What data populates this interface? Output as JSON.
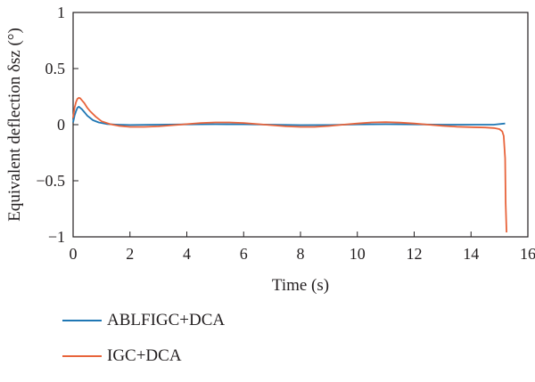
{
  "chart_data": {
    "type": "line",
    "xlabel": "Time (s)",
    "ylabel": "Equivalent deflection δsz (°)",
    "xlim": [
      0,
      16
    ],
    "ylim": [
      -1,
      1
    ],
    "xticks": [
      0,
      2,
      4,
      6,
      8,
      10,
      12,
      14,
      16
    ],
    "xtick_labels": [
      "0",
      "2",
      "4",
      "6",
      "8",
      "10",
      "12",
      "14",
      "16"
    ],
    "yticks": [
      -1,
      -0.5,
      0,
      0.5,
      1
    ],
    "ytick_labels": [
      "−1",
      "−0.5",
      "0",
      "0.5",
      "1"
    ],
    "grid": false,
    "legend_position": "bottom-left",
    "series": [
      {
        "name": "ABLFIGC+DCA",
        "color": "#1f77b4",
        "x": [
          0,
          0.05,
          0.1,
          0.15,
          0.2,
          0.3,
          0.4,
          0.5,
          0.7,
          0.9,
          1.2,
          1.6,
          2,
          3,
          4,
          5,
          6,
          7,
          8,
          9,
          10,
          11,
          12,
          13,
          14,
          14.8,
          15.2
        ],
        "y": [
          0.02,
          0.08,
          0.12,
          0.15,
          0.16,
          0.14,
          0.11,
          0.08,
          0.04,
          0.02,
          0.005,
          0,
          -0.003,
          0,
          0.002,
          0.004,
          0.003,
          0,
          -0.004,
          -0.003,
          0.002,
          0.004,
          0.002,
          0,
          0,
          0,
          0.01
        ]
      },
      {
        "name": "IGC+DCA",
        "color": "#e8643b",
        "x": [
          0,
          0.05,
          0.1,
          0.15,
          0.2,
          0.25,
          0.3,
          0.4,
          0.5,
          0.6,
          0.8,
          1,
          1.3,
          1.6,
          2,
          2.5,
          3,
          3.5,
          4,
          4.5,
          5,
          5.5,
          6,
          6.5,
          7,
          7.5,
          8,
          8.5,
          9,
          9.5,
          10,
          10.5,
          11,
          11.5,
          12,
          12.5,
          13,
          13.5,
          14,
          14.5,
          14.8,
          15,
          15.1,
          15.15,
          15.2,
          15.22,
          15.25
        ],
        "y": [
          0.06,
          0.15,
          0.2,
          0.23,
          0.24,
          0.235,
          0.22,
          0.19,
          0.15,
          0.12,
          0.07,
          0.03,
          0.005,
          -0.01,
          -0.02,
          -0.02,
          -0.015,
          -0.005,
          0.005,
          0.015,
          0.02,
          0.02,
          0.015,
          0.005,
          -0.005,
          -0.015,
          -0.02,
          -0.02,
          -0.012,
          0,
          0.01,
          0.02,
          0.022,
          0.018,
          0.01,
          0,
          -0.01,
          -0.018,
          -0.022,
          -0.025,
          -0.03,
          -0.04,
          -0.06,
          -0.1,
          -0.3,
          -0.7,
          -0.96
        ]
      }
    ]
  }
}
